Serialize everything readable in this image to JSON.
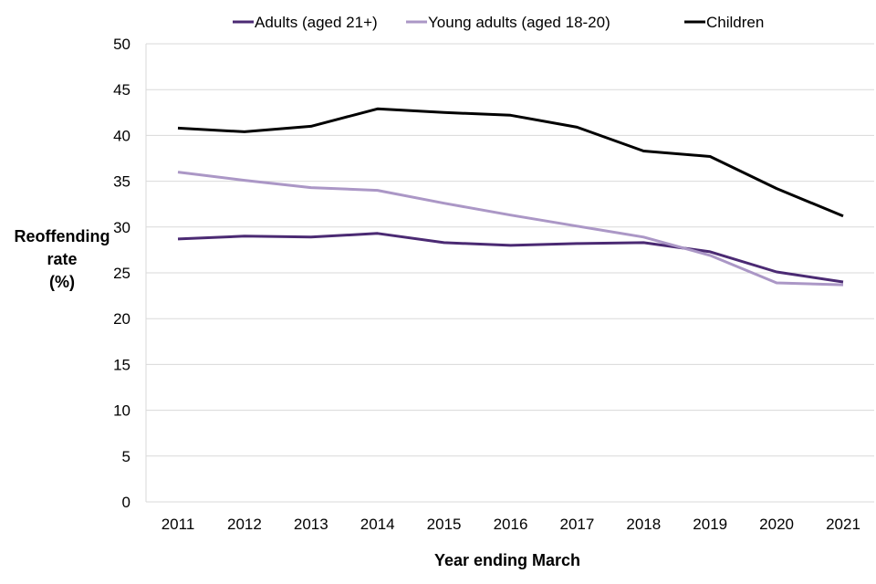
{
  "chart_data": {
    "type": "line",
    "title": "",
    "xlabel": "Year ending March",
    "ylabel": [
      "Reoffending",
      "rate",
      "(%)"
    ],
    "ylim": [
      0,
      50
    ],
    "yticks": [
      0,
      5,
      10,
      15,
      20,
      25,
      30,
      35,
      40,
      45,
      50
    ],
    "grid": true,
    "legend_position": "top",
    "x": [
      "2011",
      "2012",
      "2013",
      "2014",
      "2015",
      "2016",
      "2017",
      "2018",
      "2019",
      "2020",
      "2021"
    ],
    "series": [
      {
        "name": "Adults (aged 21+)",
        "color": "#4b2a73",
        "values": [
          28.7,
          29.0,
          28.9,
          29.3,
          28.3,
          28.0,
          28.2,
          28.3,
          27.3,
          25.1,
          24.0
        ]
      },
      {
        "name": "Young adults (aged 18-20)",
        "color": "#ab97c6",
        "values": [
          36.0,
          35.1,
          34.3,
          34.0,
          32.6,
          31.3,
          30.1,
          28.9,
          26.9,
          23.9,
          23.7
        ]
      },
      {
        "name": "Children",
        "color": "#000000",
        "values": [
          40.8,
          40.4,
          41.0,
          42.9,
          42.5,
          42.2,
          40.9,
          38.3,
          37.7,
          34.2,
          31.2
        ]
      }
    ]
  }
}
